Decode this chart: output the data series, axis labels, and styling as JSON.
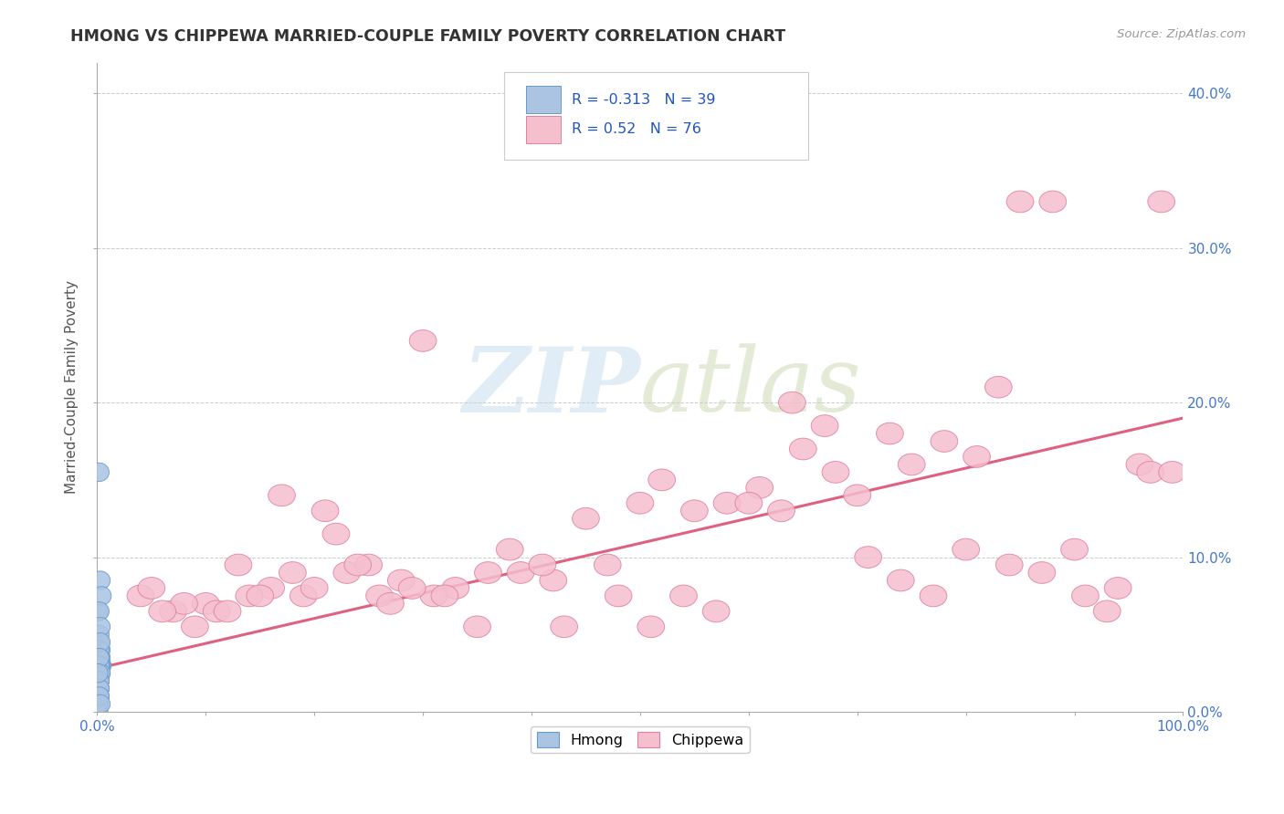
{
  "title": "HMONG VS CHIPPEWA MARRIED-COUPLE FAMILY POVERTY CORRELATION CHART",
  "source_text": "Source: ZipAtlas.com",
  "ylabel": "Married-Couple Family Poverty",
  "xlim": [
    0.0,
    1.0
  ],
  "ylim": [
    0.0,
    0.42
  ],
  "x_ticks": [
    0.0,
    0.1,
    0.2,
    0.3,
    0.4,
    0.5,
    0.6,
    0.7,
    0.8,
    0.9,
    1.0
  ],
  "x_tick_labels": [
    "0.0%",
    "",
    "",
    "",
    "",
    "",
    "",
    "",
    "",
    "",
    "100.0%"
  ],
  "y_ticks": [
    0.0,
    0.1,
    0.2,
    0.3,
    0.4
  ],
  "y_tick_labels": [
    "0.0%",
    "10.0%",
    "20.0%",
    "30.0%",
    "40.0%"
  ],
  "hmong_R": -0.313,
  "hmong_N": 39,
  "chippewa_R": 0.52,
  "chippewa_N": 76,
  "hmong_color": "#aac4e2",
  "hmong_edge_color": "#6699cc",
  "chippewa_color": "#f5bfce",
  "chippewa_edge_color": "#e080a0",
  "trend_color_chippewa": "#e06080",
  "watermark_color": "#cce0f0",
  "background_color": "#ffffff",
  "grid_color": "#cccccc",
  "trend_intercept": 0.028,
  "trend_slope": 0.162,
  "hmong_x": [
    0.002,
    0.003,
    0.001,
    0.004,
    0.002,
    0.003,
    0.002,
    0.004,
    0.003,
    0.002,
    0.001,
    0.002,
    0.003,
    0.001,
    0.002,
    0.003,
    0.002,
    0.001,
    0.002,
    0.003,
    0.001,
    0.002,
    0.001,
    0.002,
    0.003,
    0.001,
    0.002,
    0.003,
    0.001,
    0.002,
    0.001,
    0.001,
    0.002,
    0.002,
    0.001,
    0.002,
    0.001,
    0.002,
    0.003
  ],
  "hmong_y": [
    0.155,
    0.085,
    0.065,
    0.075,
    0.05,
    0.04,
    0.065,
    0.03,
    0.035,
    0.045,
    0.025,
    0.02,
    0.055,
    0.015,
    0.04,
    0.03,
    0.02,
    0.01,
    0.035,
    0.025,
    0.01,
    0.015,
    0.005,
    0.03,
    0.045,
    0.005,
    0.015,
    0.025,
    0.02,
    0.01,
    0.0,
    0.005,
    0.02,
    0.015,
    0.005,
    0.035,
    0.025,
    0.01,
    0.005
  ],
  "chippewa_x": [
    0.04,
    0.07,
    0.1,
    0.13,
    0.16,
    0.19,
    0.21,
    0.23,
    0.26,
    0.28,
    0.3,
    0.17,
    0.22,
    0.25,
    0.33,
    0.36,
    0.38,
    0.42,
    0.45,
    0.48,
    0.5,
    0.52,
    0.55,
    0.58,
    0.61,
    0.63,
    0.65,
    0.68,
    0.7,
    0.73,
    0.75,
    0.78,
    0.8,
    0.83,
    0.85,
    0.88,
    0.9,
    0.93,
    0.96,
    0.98,
    0.05,
    0.08,
    0.11,
    0.14,
    0.18,
    0.2,
    0.24,
    0.27,
    0.31,
    0.35,
    0.39,
    0.43,
    0.47,
    0.51,
    0.54,
    0.57,
    0.6,
    0.64,
    0.67,
    0.71,
    0.74,
    0.77,
    0.81,
    0.84,
    0.87,
    0.91,
    0.94,
    0.97,
    0.99,
    0.06,
    0.09,
    0.12,
    0.15,
    0.29,
    0.32,
    0.41
  ],
  "chippewa_y": [
    0.075,
    0.065,
    0.07,
    0.095,
    0.08,
    0.075,
    0.13,
    0.09,
    0.075,
    0.085,
    0.24,
    0.14,
    0.115,
    0.095,
    0.08,
    0.09,
    0.105,
    0.085,
    0.125,
    0.075,
    0.135,
    0.15,
    0.13,
    0.135,
    0.145,
    0.13,
    0.17,
    0.155,
    0.14,
    0.18,
    0.16,
    0.175,
    0.105,
    0.21,
    0.33,
    0.33,
    0.105,
    0.065,
    0.16,
    0.33,
    0.08,
    0.07,
    0.065,
    0.075,
    0.09,
    0.08,
    0.095,
    0.07,
    0.075,
    0.055,
    0.09,
    0.055,
    0.095,
    0.055,
    0.075,
    0.065,
    0.135,
    0.2,
    0.185,
    0.1,
    0.085,
    0.075,
    0.165,
    0.095,
    0.09,
    0.075,
    0.08,
    0.155,
    0.155,
    0.065,
    0.055,
    0.065,
    0.075,
    0.08,
    0.075,
    0.095
  ]
}
